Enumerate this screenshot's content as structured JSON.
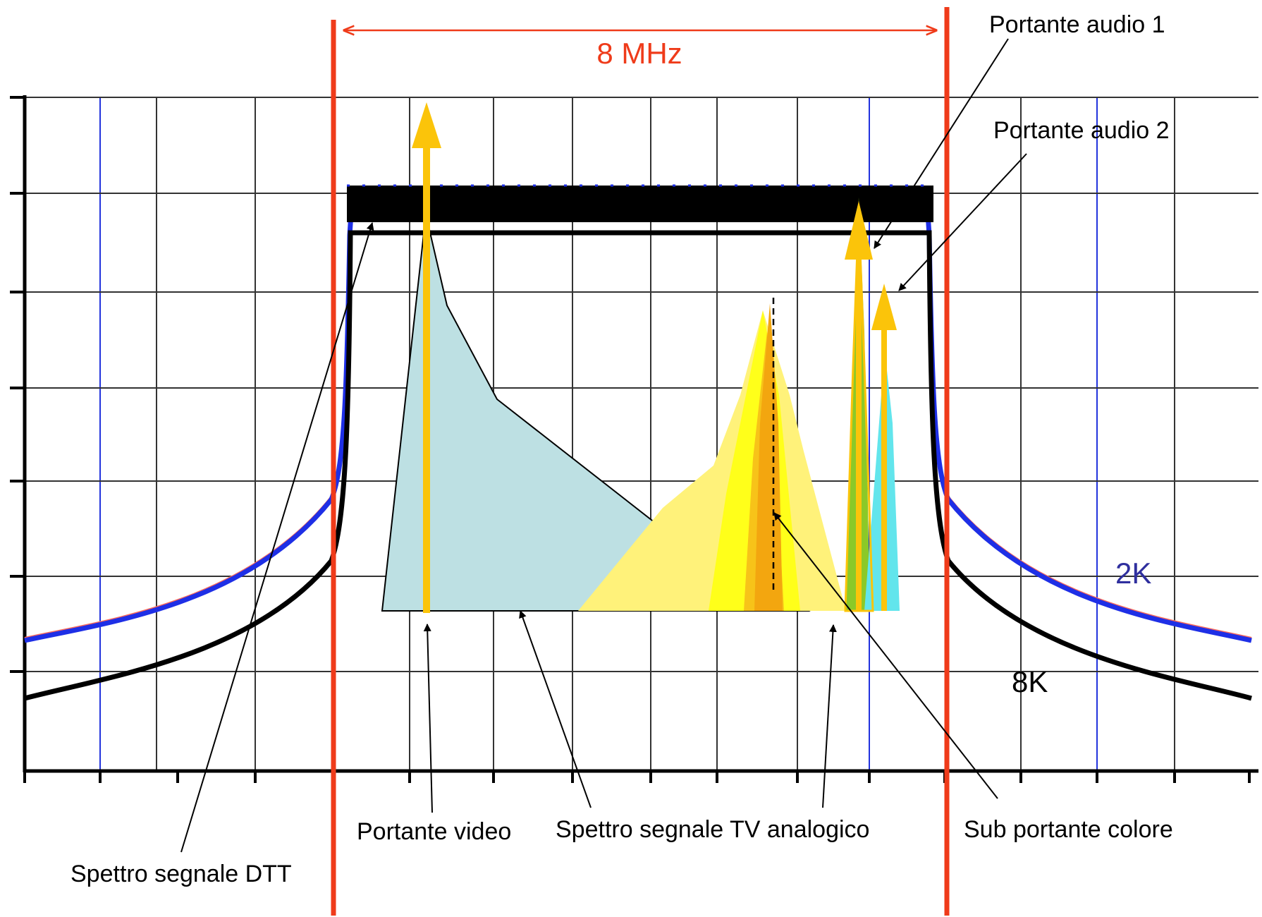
{
  "labels": {
    "bandwidth": "8 MHz",
    "audio_carrier_1": "Portante audio 1",
    "audio_carrier_2": "Portante audio 2",
    "mode_2k": "2K",
    "mode_8k": "8K",
    "video_carrier": "Portante video",
    "analog_tv_spectrum": "Spettro segnale TV analogico",
    "color_subcarrier": "Sub portante colore",
    "dtt_spectrum": "Spettro segnale DTT"
  },
  "colors": {
    "channel_edge": "#ef3b1a",
    "bandwidth_text": "#ef3b1a",
    "curve_2k": "#1e2fe6",
    "curve_2k_edge": "#ff6a5a",
    "curve_8k": "#000000",
    "mode_2k_text": "#2f2f9e",
    "video_spectrum": "#bde0e3",
    "carrier_arrow": "#fbc40a",
    "grid": "#333333",
    "grid_blue": "#2233dd",
    "chroma_outer": "#fff27a",
    "chroma_mid": "#ffff1a",
    "chroma_inner": "#f7c319",
    "chroma_core": "#f3a60f",
    "audio1_fill": "#8bc928",
    "audio2_fill": "#62e5ec"
  }
}
